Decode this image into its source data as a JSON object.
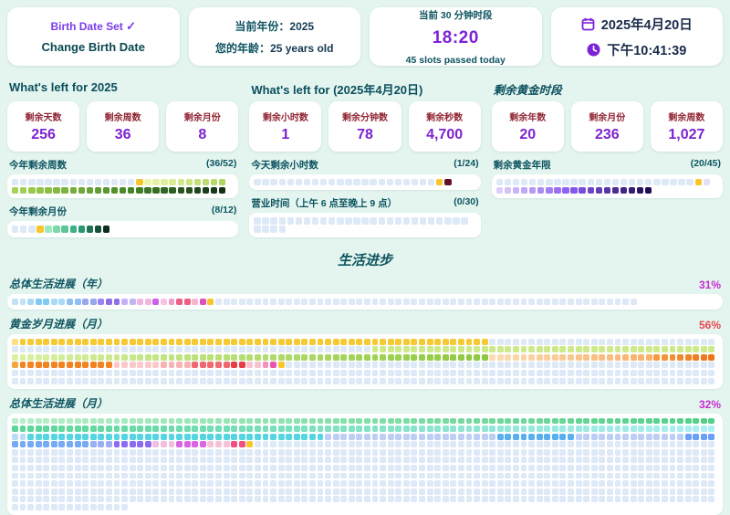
{
  "colors": {
    "pale": "#dde9f6",
    "cur": "#f8c52c",
    "accent_purple": "#7d22cf",
    "teal_heading": "#0b4f5e",
    "stat_label_red": "#8f2433",
    "percent_magenta": "#c62ed0",
    "percent_red": "#e84850",
    "background": "#e4f5ef"
  },
  "top_cards": {
    "birth": {
      "status": "Birth Date Set",
      "check": "✓",
      "button": "Change Birth Date"
    },
    "year": {
      "line1_label": "当前年份：",
      "line1_value": "2025",
      "line2_label": "您的年龄：",
      "line2_value": "25 years old"
    },
    "slot": {
      "title": "当前 30 分钟时段",
      "time": "18:20",
      "subtitle": "45 slots passed today"
    },
    "datetime": {
      "date": "2025年4月20日",
      "time": "下午10:41:39"
    }
  },
  "sections": [
    {
      "title": "What's left for 2025",
      "stats": [
        {
          "label": "剩余天数",
          "value": "256"
        },
        {
          "label": "剩余周数",
          "value": "36"
        },
        {
          "label": "剩余月份",
          "value": "8"
        }
      ],
      "progress": [
        {
          "label": "今年剩余周数",
          "fraction": "(36/52)"
        },
        {
          "label": "今年剩余月份",
          "fraction": "(8/12)"
        }
      ]
    },
    {
      "title": "What's left for (2025年4月20日)",
      "stats": [
        {
          "label": "剩余小时数",
          "value": "1"
        },
        {
          "label": "剩余分钟数",
          "value": "78"
        },
        {
          "label": "剩余秒数",
          "value": "4,700"
        }
      ],
      "progress": [
        {
          "label": "今天剩余小时数",
          "fraction": "(1/24)"
        },
        {
          "label": "营业时间（上午 6 点至晚上 9 点）",
          "fraction": "(0/30)"
        }
      ]
    },
    {
      "title": "剩余黄金时段",
      "stats": [
        {
          "label": "剩余年数",
          "value": "20"
        },
        {
          "label": "剩余月份",
          "value": "236"
        },
        {
          "label": "剩余周数",
          "value": "1,027"
        }
      ],
      "progress": [
        {
          "label": "剩余黄金年限",
          "fraction": "(20/45)"
        }
      ]
    }
  ],
  "life_progress": {
    "heading": "生活进步",
    "bars": [
      {
        "label": "总体生活进展（年）",
        "percent": "31%"
      },
      {
        "label": "黄金岁月进展（月）",
        "percent": "56%"
      },
      {
        "label": "总体生活进展（月）",
        "percent": "32%"
      }
    ]
  },
  "grids": {
    "weeks52": [
      {
        "n": 15,
        "c": "pale"
      },
      {
        "n": 1,
        "c": "cur"
      },
      {
        "n": 36,
        "g": [
          "#eef6ae",
          "#9ccb4c",
          "#498a28",
          "#123019"
        ]
      }
    ],
    "months12": [
      {
        "n": 3,
        "c": "pale"
      },
      {
        "n": 1,
        "c": "cur"
      },
      {
        "n": 8,
        "g": [
          "#9ceabc",
          "#2ea87c",
          "#0a2e1e"
        ]
      }
    ],
    "hours24": [
      {
        "n": 22,
        "c": "pale"
      },
      {
        "n": 1,
        "c": "cur"
      },
      {
        "n": 1,
        "c": "#621226"
      }
    ],
    "work30": [
      {
        "n": 30,
        "c": "pale"
      }
    ],
    "golden45": [
      {
        "n": 24,
        "c": "pale"
      },
      {
        "n": 1,
        "c": "cur"
      },
      {
        "n": 20,
        "g": [
          "#e6ddf8",
          "#8a5cf0",
          "#200b52"
        ]
      }
    ],
    "years80": [
      {
        "n": 2,
        "c": "#bfe2f7"
      },
      {
        "n": 1,
        "c": "#a9d9f5"
      },
      {
        "n": 2,
        "c": "#7fc9f2"
      },
      {
        "n": 2,
        "c": "#a9d9f5"
      },
      {
        "n": 2,
        "c": "#8fbef2"
      },
      {
        "n": 2,
        "c": "#96a9f0"
      },
      {
        "n": 1,
        "c": "#9b85f2"
      },
      {
        "n": 2,
        "c": "#8f6ee8"
      },
      {
        "n": 2,
        "c": "#c4b3f5"
      },
      {
        "n": 2,
        "c": "#f0b6de"
      },
      {
        "n": 1,
        "c": "#cf5fe8"
      },
      {
        "n": 1,
        "c": "#f5c4e2"
      },
      {
        "n": 1,
        "c": "#f09cc8"
      },
      {
        "n": 2,
        "c": "#eb5f86"
      },
      {
        "n": 1,
        "c": "#f5b6cc"
      },
      {
        "n": 1,
        "c": "#e04fc0"
      },
      {
        "n": 1,
        "c": "cur"
      },
      {
        "n": 54,
        "c": "pale"
      }
    ],
    "goldenMonths": [
      {
        "n": 1,
        "c": "#fae07f"
      },
      {
        "n": 60,
        "c": "#f6c832"
      },
      {
        "n": 29,
        "c": "pale"
      },
      {
        "n": 46,
        "c": "pale"
      },
      {
        "n": 44,
        "c": "#cdea8a"
      },
      {
        "n": 61,
        "g": [
          "#daf1a2",
          "#8dc83e"
        ]
      },
      {
        "n": 21,
        "g": [
          "#fbdcb4",
          "#f7b16b"
        ]
      },
      {
        "n": 8,
        "g": [
          "#f39a3e",
          "#ee7418"
        ]
      },
      {
        "n": 1,
        "c": "#f5a53e"
      },
      {
        "n": 12,
        "c": "#f08421"
      },
      {
        "n": 6,
        "c": "#fac9c9"
      },
      {
        "n": 4,
        "c": "#f7b3b3"
      },
      {
        "n": 5,
        "c": "#ee6a70"
      },
      {
        "n": 2,
        "c": "#e63c46"
      },
      {
        "n": 2,
        "c": "#f8c2ce"
      },
      {
        "n": 1,
        "c": "#f490be"
      },
      {
        "n": 1,
        "c": "#e853b0"
      },
      {
        "n": 1,
        "c": "cur"
      },
      {
        "n": 55,
        "c": "pale"
      },
      {
        "n": 180,
        "c": "pale"
      }
    ],
    "lifeMonths": [
      {
        "n": 90,
        "g": [
          "#b6eec9",
          "#52cf88"
        ]
      },
      {
        "n": 90,
        "g": [
          "#5cd698",
          "#aceef4"
        ]
      },
      {
        "n": 2,
        "c": "#b8dcf6"
      },
      {
        "n": 38,
        "c": "#55d5e1"
      },
      {
        "n": 22,
        "c": "#bdcdf3"
      },
      {
        "n": 10,
        "c": "#58aff0"
      },
      {
        "n": 14,
        "c": "#bdcdf3"
      },
      {
        "n": 4,
        "c": "#6b9ef5"
      },
      {
        "n": 10,
        "c": "#76aaf2"
      },
      {
        "n": 3,
        "c": "#9aaef2"
      },
      {
        "n": 5,
        "c": "#8b6cf0"
      },
      {
        "n": 3,
        "c": "#f0bede"
      },
      {
        "n": 4,
        "c": "#d966e0"
      },
      {
        "n": 3,
        "c": "#f5c2da"
      },
      {
        "n": 2,
        "c": "#ef4e7e"
      },
      {
        "n": 1,
        "c": "cur"
      },
      {
        "n": 59,
        "c": "pale"
      },
      {
        "n": 630,
        "c": "pale"
      },
      {
        "n": 15,
        "c": "pale"
      }
    ]
  }
}
